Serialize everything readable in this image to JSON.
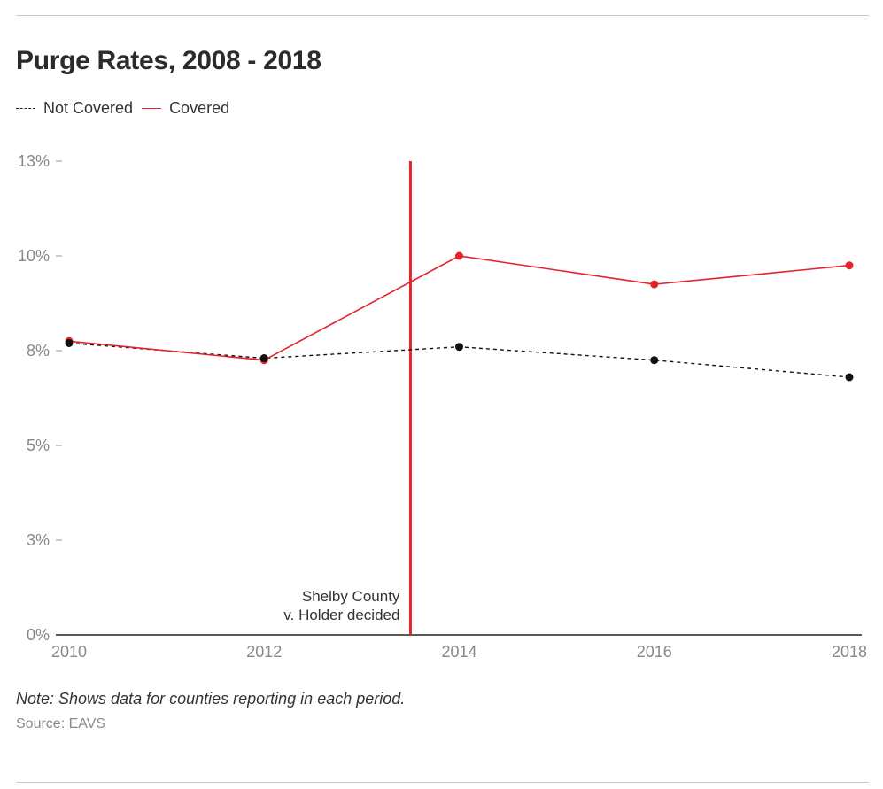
{
  "chart_data": {
    "type": "line",
    "title": "Purge Rates, 2008 - 2018",
    "x": [
      2010,
      2012,
      2014,
      2016,
      2018
    ],
    "x_tick_labels": [
      "2010",
      "2012",
      "2014",
      "2016",
      "2018"
    ],
    "ylim": [
      0,
      12.5
    ],
    "y_ticks": [
      0,
      2.5,
      5,
      7.5,
      10,
      12.5
    ],
    "y_tick_labels": [
      "0%",
      "3%",
      "5%",
      "8%",
      "10%",
      "13%"
    ],
    "series": [
      {
        "name": "Not Covered",
        "style": "dashed",
        "color": "#111111",
        "values": [
          7.7,
          7.3,
          7.6,
          7.25,
          6.8
        ]
      },
      {
        "name": "Covered",
        "style": "solid",
        "color": "#e3242b",
        "values": [
          7.75,
          7.25,
          10.0,
          9.25,
          9.75
        ]
      }
    ],
    "annotation": {
      "x": 2013.5,
      "lines": [
        "Shelby County",
        "v. Holder decided"
      ],
      "color": "#e3242b"
    },
    "grid": false,
    "legend_position": "top-left"
  },
  "note": "Note: Shows data for counties reporting in each period.",
  "source": "Source: EAVS"
}
